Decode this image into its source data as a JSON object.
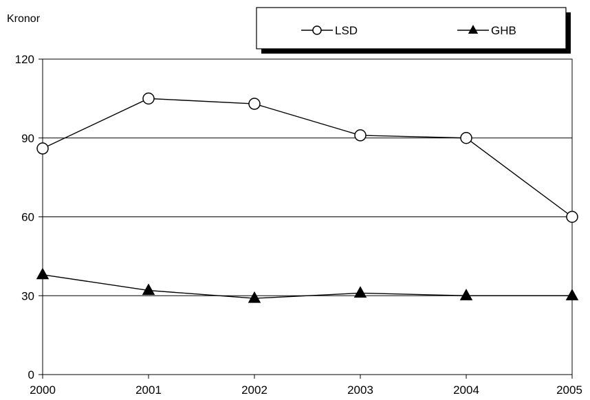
{
  "chart_data": {
    "type": "line",
    "title": "",
    "xlabel": "",
    "ylabel": "Kronor",
    "categories": [
      "2000",
      "2001",
      "2002",
      "2003",
      "2004",
      "2005"
    ],
    "ylim": [
      0,
      120
    ],
    "yticks": [
      "0",
      "30",
      "60",
      "90",
      "120"
    ],
    "grid": "horizontal",
    "legend_position": "top-right",
    "series": [
      {
        "name": "LSD",
        "marker": "open-circle",
        "values": [
          86,
          105,
          103,
          91,
          90,
          60
        ]
      },
      {
        "name": "GHB",
        "marker": "filled-triangle",
        "values": [
          38,
          32,
          29,
          31,
          30,
          30
        ]
      }
    ],
    "colors": {
      "line": "#000000",
      "grid": "#000000",
      "legend_shadow": "#000000",
      "marker_fill_open": "#ffffff"
    }
  }
}
